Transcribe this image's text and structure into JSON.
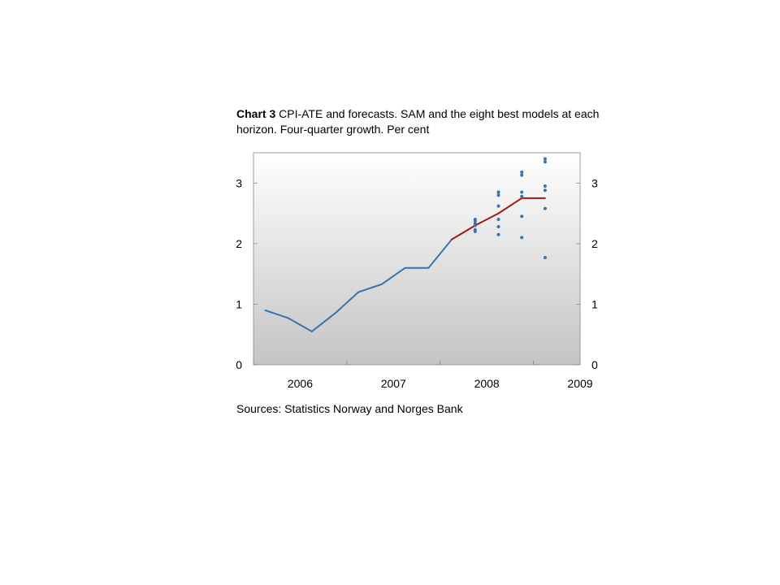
{
  "chart_data": {
    "type": "line",
    "title_lead": "Chart 3",
    "title": "CPI-ATE and forecasts. SAM and the eight best models at each horizon. Four-quarter growth. Per cent",
    "source": "Sources: Statistics Norway and Norges Bank",
    "xlabel": "",
    "ylabel": "",
    "xlim": [
      2006.0,
      2009.5
    ],
    "ylim": [
      0,
      3.5
    ],
    "x_ticks": [
      "2006",
      "2007",
      "2008",
      "2009"
    ],
    "y_ticks": [
      "0",
      "1",
      "2",
      "3"
    ],
    "y_ticks_right": [
      "0",
      "1",
      "2",
      "3"
    ],
    "grid": false,
    "series": [
      {
        "color": "#3a73a8",
        "x": [
          "2006Q1",
          "2006Q2",
          "2006Q3",
          "2006Q4",
          "2007Q1",
          "2007Q2",
          "2007Q3",
          "2007Q4",
          "2008Q1"
        ],
        "values": [
          0.9,
          0.77,
          0.55,
          0.85,
          1.2,
          1.33,
          1.6,
          1.6,
          2.07
        ]
      },
      {
        "color": "#a01c12",
        "x": [
          "2008Q1",
          "2008Q2",
          "2008Q3",
          "2008Q4",
          "2009Q1"
        ],
        "values": [
          2.07,
          2.3,
          2.5,
          2.75,
          2.75
        ]
      }
    ],
    "forecast_points": {
      "color": "#3a73a8",
      "groups": [
        {
          "x": "2008Q2",
          "values": [
            2.2,
            2.23,
            2.3,
            2.33,
            2.37,
            2.4
          ]
        },
        {
          "x": "2008Q3",
          "values": [
            2.15,
            2.28,
            2.4,
            2.62,
            2.8,
            2.85
          ]
        },
        {
          "x": "2008Q4",
          "values": [
            2.1,
            2.45,
            2.78,
            2.85,
            3.13,
            3.18
          ]
        },
        {
          "x": "2009Q1",
          "values": [
            1.77,
            2.58,
            2.88,
            2.95,
            3.35,
            3.4
          ]
        }
      ]
    }
  }
}
